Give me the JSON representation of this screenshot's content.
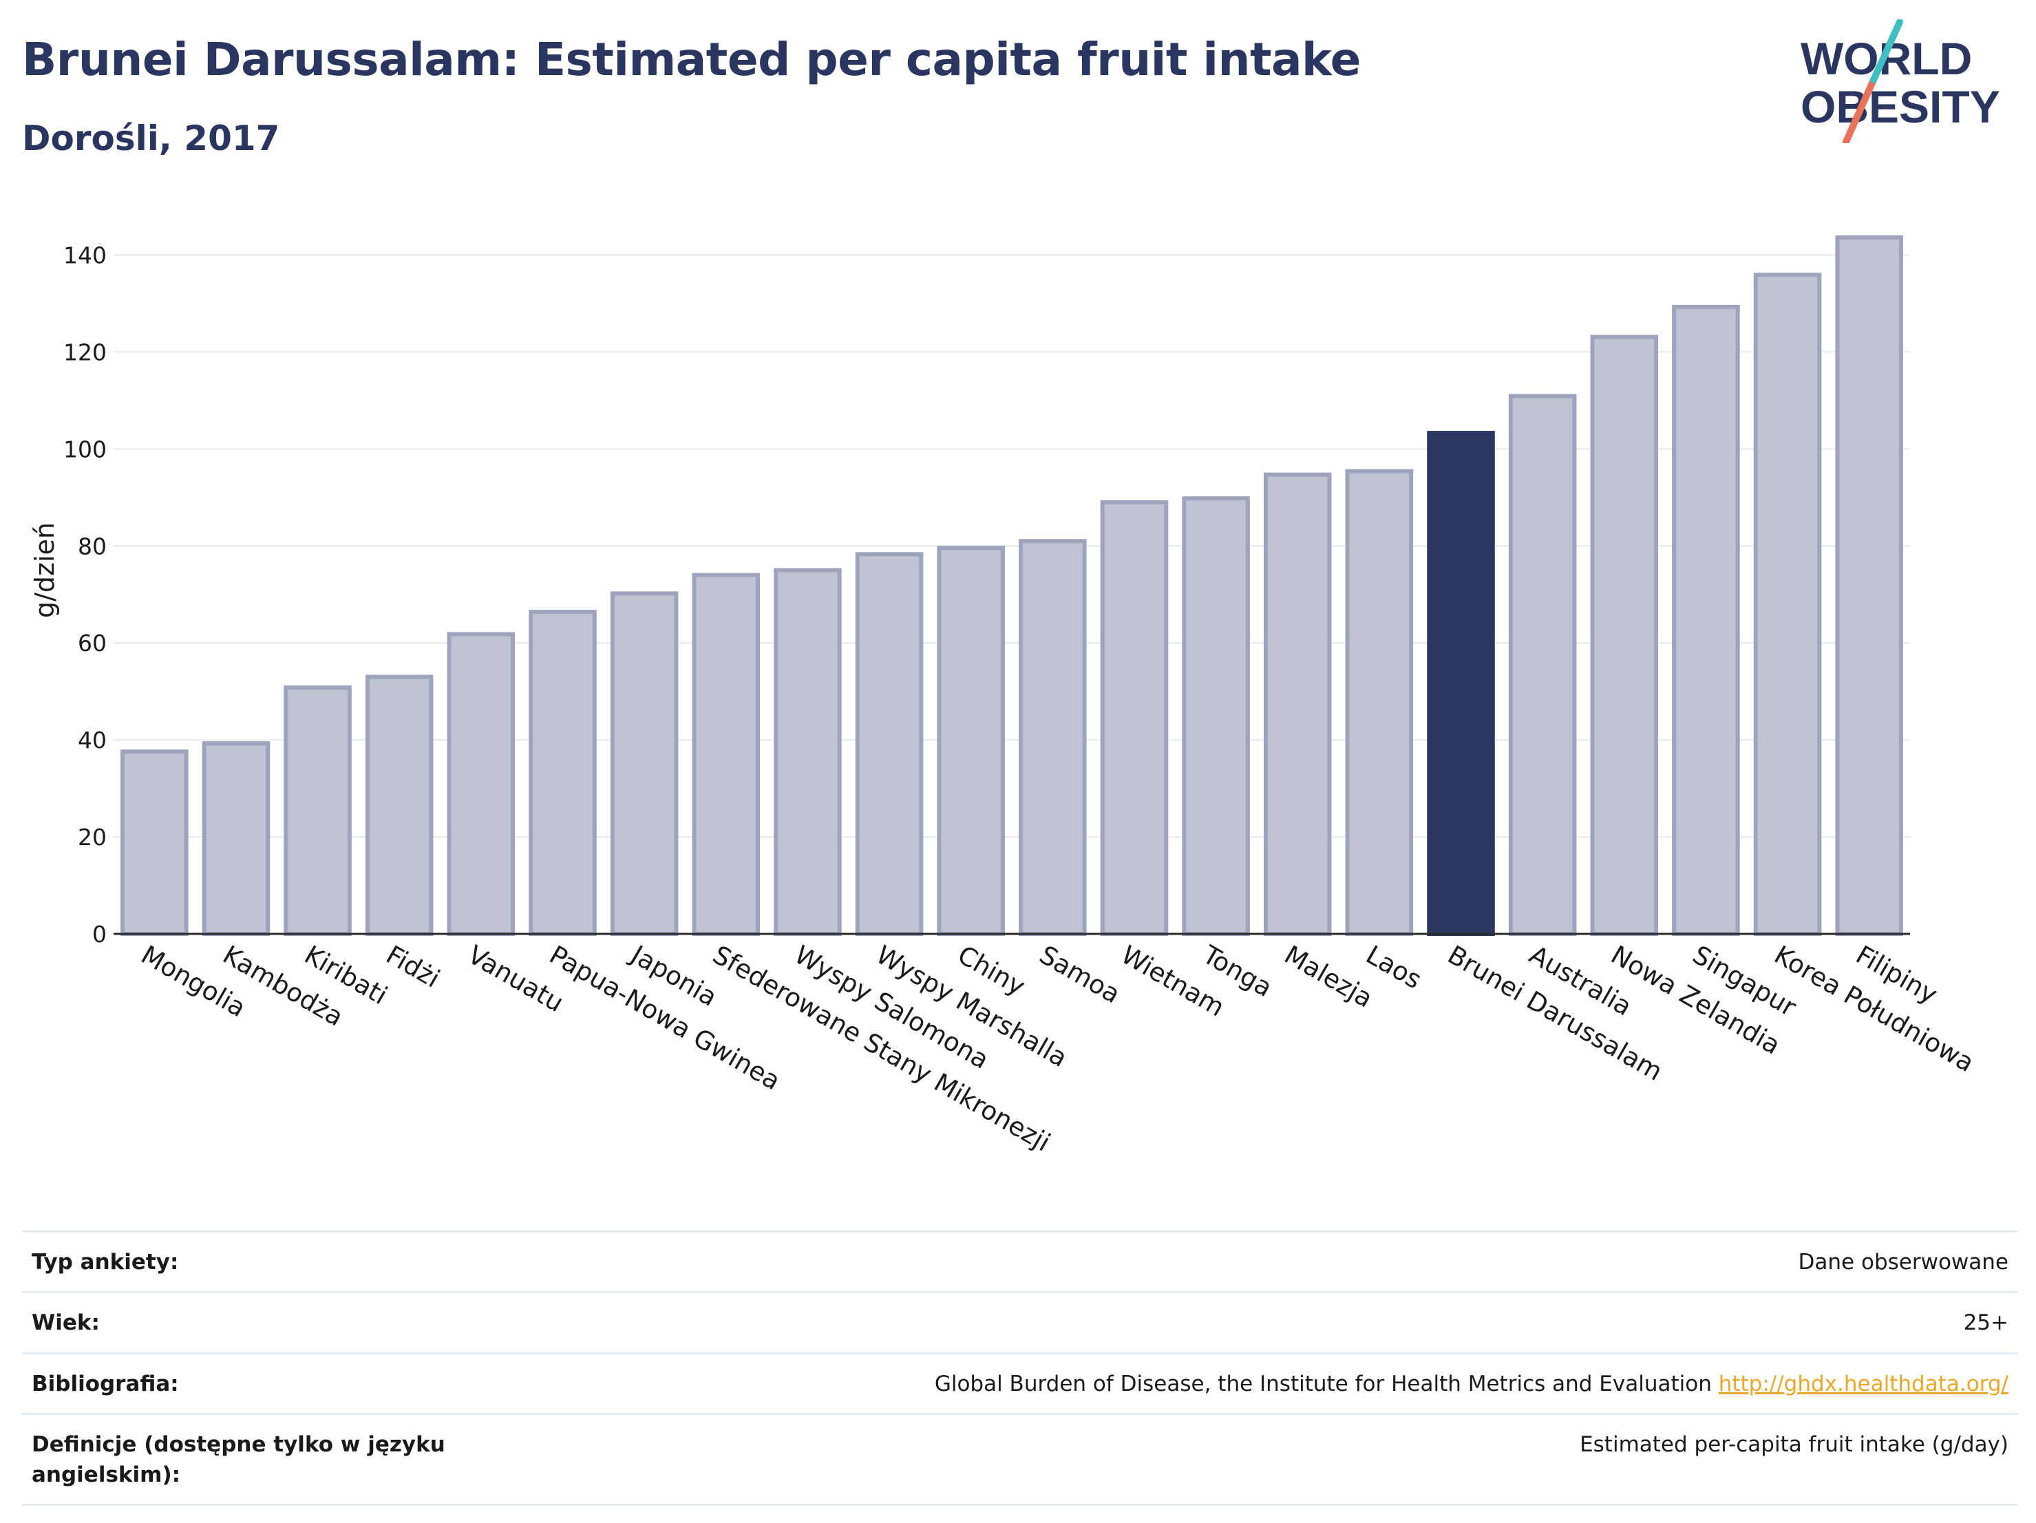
{
  "header": {
    "title": "Brunei Darussalam: Estimated per capita fruit intake",
    "subtitle": "Dorośli, 2017"
  },
  "logo": {
    "line1": "WORLD",
    "line2": "OBESITY"
  },
  "chart_data": {
    "type": "bar",
    "ylabel": "g/dzień",
    "xlabel": "",
    "ylim": [
      0,
      150
    ],
    "yticks": [
      0,
      20,
      40,
      60,
      80,
      100,
      120,
      140
    ],
    "grid": true,
    "categories": [
      "Mongolia",
      "Kambodża",
      "Kiribati",
      "Fidżi",
      "Vanuatu",
      "Papua-Nowa Gwinea",
      "Japonia",
      "Sfederowane Stany Mikronezji",
      "Wyspy Salomona",
      "Wyspy Marshalla",
      "Chiny",
      "Samoa",
      "Wietnam",
      "Tonga",
      "Malezja",
      "Laos",
      "Brunei Darussalam",
      "Australia",
      "Nowa Zelandia",
      "Singapur",
      "Korea Południowa",
      "Filipiny"
    ],
    "values": [
      37.6,
      39.3,
      50.8,
      53.0,
      61.8,
      66.4,
      70.2,
      74.0,
      75.0,
      78.3,
      79.6,
      81.0,
      89.0,
      89.8,
      94.7,
      95.4,
      103.3,
      110.9,
      123.1,
      129.3,
      135.9,
      143.6
    ],
    "highlight": "Brunei Darussalam",
    "colors": {
      "highlight": "#2a3660",
      "other": "#c0c3d2",
      "other_border": "#9ea4bd"
    }
  },
  "info": {
    "rows": [
      {
        "label": "Typ ankiety:",
        "value": "Dane obserwowane"
      },
      {
        "label": "Wiek:",
        "value": "25+"
      },
      {
        "label": "Bibliografia:",
        "value": "Global Burden of Disease, the Institute for Health Metrics and Evaluation ",
        "link": "http://ghdx.healthdata.org/"
      },
      {
        "label": "Definicje (dostępne tylko w języku angielskim):",
        "value": "Estimated per-capita fruit intake (g/day)"
      }
    ]
  }
}
